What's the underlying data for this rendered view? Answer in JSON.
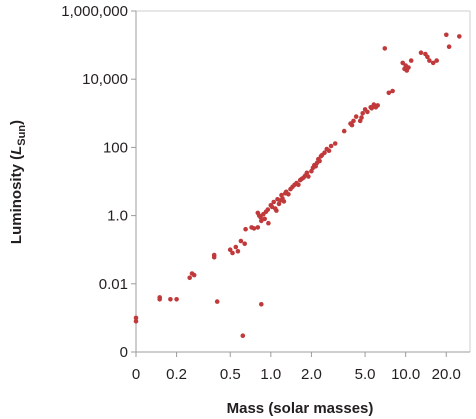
{
  "chart_data": {
    "type": "scatter",
    "title": "",
    "xlabel": "Mass (solar masses)",
    "ylabel": {
      "prefix": "Luminosity (",
      "var": "L",
      "sub": "Sun",
      "suffix": ")"
    },
    "x_scale": "log",
    "y_scale": "log",
    "xlim": [
      0.1,
      30
    ],
    "ylim": [
      0.0001,
      1000000
    ],
    "x_ticks": [
      {
        "value": 0.1,
        "label": "0"
      },
      {
        "value": 0.2,
        "label": "0.2"
      },
      {
        "value": 0.5,
        "label": "0.5"
      },
      {
        "value": 1.0,
        "label": "1.0"
      },
      {
        "value": 2.0,
        "label": "2.0"
      },
      {
        "value": 5.0,
        "label": "5.0"
      },
      {
        "value": 10.0,
        "label": "10.0"
      },
      {
        "value": 20.0,
        "label": "20.0"
      }
    ],
    "y_ticks": [
      {
        "value": 0.0001,
        "label": "0"
      },
      {
        "value": 0.01,
        "label": "0.01"
      },
      {
        "value": 1,
        "label": "1.0"
      },
      {
        "value": 100,
        "label": "100"
      },
      {
        "value": 10000,
        "label": "10,000"
      },
      {
        "value": 1000000,
        "label": "1,000,000"
      }
    ],
    "grid": false,
    "legend": "none",
    "point_color": "#c0393b",
    "series": [
      {
        "points": [
          [
            0.1,
            0.001
          ],
          [
            0.1,
            0.0008
          ],
          [
            0.15,
            0.004
          ],
          [
            0.15,
            0.0035
          ],
          [
            0.18,
            0.0035
          ],
          [
            0.2,
            0.0035
          ],
          [
            0.25,
            0.015
          ],
          [
            0.26,
            0.02
          ],
          [
            0.27,
            0.018
          ],
          [
            0.4,
            0.003
          ],
          [
            0.85,
            0.0025
          ],
          [
            0.62,
            0.0003
          ],
          [
            0.38,
            0.06
          ],
          [
            0.38,
            0.07
          ],
          [
            0.5,
            0.1
          ],
          [
            0.52,
            0.08
          ],
          [
            0.55,
            0.12
          ],
          [
            0.57,
            0.09
          ],
          [
            0.6,
            0.18
          ],
          [
            0.64,
            0.15
          ],
          [
            0.65,
            0.4
          ],
          [
            0.72,
            0.45
          ],
          [
            0.75,
            0.42
          ],
          [
            0.8,
            0.45
          ],
          [
            0.8,
            1.2
          ],
          [
            0.82,
            1.0
          ],
          [
            0.84,
            0.9
          ],
          [
            0.85,
            0.7
          ],
          [
            0.88,
            1.1
          ],
          [
            0.9,
            0.8
          ],
          [
            0.92,
            1.3
          ],
          [
            0.95,
            1.5
          ],
          [
            0.96,
            0.6
          ],
          [
            1.0,
            2.0
          ],
          [
            1.02,
            1.8
          ],
          [
            1.05,
            2.5
          ],
          [
            1.08,
            1.6
          ],
          [
            1.1,
            1.4
          ],
          [
            1.12,
            3.0
          ],
          [
            1.15,
            2.2
          ],
          [
            1.18,
            2.8
          ],
          [
            1.2,
            4.0
          ],
          [
            1.22,
            3.2
          ],
          [
            1.25,
            2.6
          ],
          [
            1.28,
            4.5
          ],
          [
            1.3,
            5.0
          ],
          [
            1.35,
            4.2
          ],
          [
            1.4,
            6.0
          ],
          [
            1.45,
            7.0
          ],
          [
            1.5,
            8.0
          ],
          [
            1.55,
            9.0
          ],
          [
            1.6,
            8.0
          ],
          [
            1.65,
            11.0
          ],
          [
            1.7,
            12.0
          ],
          [
            1.75,
            13.0
          ],
          [
            1.8,
            15.0
          ],
          [
            1.85,
            18.0
          ],
          [
            1.9,
            14.0
          ],
          [
            2.0,
            20.0
          ],
          [
            2.05,
            25.0
          ],
          [
            2.1,
            30.0
          ],
          [
            2.15,
            28.0
          ],
          [
            2.2,
            35.0
          ],
          [
            2.25,
            45.0
          ],
          [
            2.3,
            40.0
          ],
          [
            2.35,
            55.0
          ],
          [
            2.4,
            60.0
          ],
          [
            2.5,
            70.0
          ],
          [
            2.6,
            90.0
          ],
          [
            2.7,
            80.0
          ],
          [
            2.8,
            110.0
          ],
          [
            3.0,
            130.0
          ],
          [
            3.5,
            300.0
          ],
          [
            3.9,
            500.0
          ],
          [
            4.0,
            450.0
          ],
          [
            4.1,
            600.0
          ],
          [
            4.3,
            800.0
          ],
          [
            4.6,
            600.0
          ],
          [
            4.8,
            1000.0
          ],
          [
            5.0,
            1300.0
          ],
          [
            5.2,
            1100.0
          ],
          [
            5.5,
            1500.0
          ],
          [
            5.8,
            1800.0
          ],
          [
            6.0,
            1500.0
          ],
          [
            6.2,
            1700.0
          ],
          [
            5.6,
            1400.0
          ],
          [
            4.7,
            750.0
          ],
          [
            7.0,
            80000.0
          ],
          [
            7.5,
            4000.0
          ],
          [
            8.0,
            4500.0
          ],
          [
            9.5,
            30000.0
          ],
          [
            9.8,
            20000.0
          ],
          [
            10.0,
            25000.0
          ],
          [
            10.2,
            18000.0
          ],
          [
            10.5,
            22000.0
          ],
          [
            11.0,
            35000.0
          ],
          [
            13.0,
            60000.0
          ],
          [
            14.0,
            55000.0
          ],
          [
            14.5,
            45000.0
          ],
          [
            15.0,
            35000.0
          ],
          [
            16.0,
            30000.0
          ],
          [
            17.0,
            35000.0
          ],
          [
            20.0,
            200000.0
          ],
          [
            21.0,
            90000.0
          ],
          [
            25.0,
            180000.0
          ]
        ]
      }
    ]
  }
}
